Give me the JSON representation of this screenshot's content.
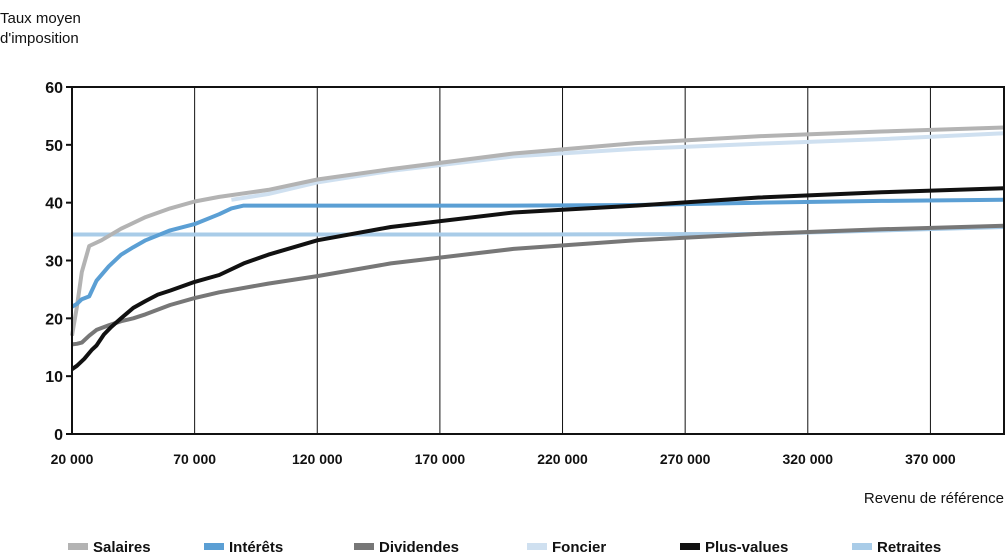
{
  "chart_data": {
    "type": "line",
    "ylabel_lines": [
      "Taux moyen",
      "d'imposition"
    ],
    "xlabel": "Revenu de référence",
    "xlim": [
      20000,
      400000
    ],
    "ylim": [
      0,
      60
    ],
    "yticks": [
      0,
      10,
      20,
      30,
      40,
      50,
      60
    ],
    "ytick_labels": [
      "0",
      "10",
      "20",
      "30",
      "40",
      "50",
      "60"
    ],
    "xticks": [
      20000,
      70000,
      120000,
      170000,
      220000,
      270000,
      320000,
      370000
    ],
    "xtick_labels": [
      "20 000",
      "70 000",
      "120 000",
      "170 000",
      "220 000",
      "270 000",
      "320 000",
      "370 000"
    ],
    "grid": "vertical",
    "legend_position": "bottom",
    "series": [
      {
        "name": "Salaires",
        "color": "#b3b3b3",
        "x": [
          20000,
          22000,
          24000,
          27000,
          32000,
          40000,
          50000,
          60000,
          70000,
          80000,
          100000,
          120000,
          150000,
          200000,
          250000,
          300000,
          350000,
          400000
        ],
        "y": [
          17,
          22,
          28,
          32.5,
          33.5,
          35.5,
          37.5,
          39,
          40.2,
          41,
          42.2,
          44,
          45.8,
          48.5,
          50.3,
          51.5,
          52.3,
          53
        ]
      },
      {
        "name": "Intérêts",
        "color": "#5b9fd4",
        "x": [
          20000,
          22000,
          24000,
          27000,
          30000,
          35000,
          40000,
          45000,
          50000,
          60000,
          70000,
          80000,
          85000,
          90000,
          95000,
          100000,
          150000,
          200000,
          250000,
          300000,
          350000,
          400000
        ],
        "y": [
          22,
          22.5,
          23.3,
          23.8,
          26.5,
          29,
          31,
          32.3,
          33.5,
          35.2,
          36.3,
          38,
          39,
          39.5,
          39.5,
          39.5,
          39.5,
          39.5,
          39.6,
          40,
          40.3,
          40.5
        ]
      },
      {
        "name": "Dividendes",
        "color": "#777777",
        "x": [
          20000,
          22000,
          24000,
          27000,
          30000,
          35000,
          40000,
          45000,
          50000,
          60000,
          70000,
          80000,
          100000,
          120000,
          150000,
          200000,
          250000,
          300000,
          350000,
          400000
        ],
        "y": [
          15.5,
          15.6,
          15.8,
          17,
          18,
          18.8,
          19.5,
          20,
          20.7,
          22.3,
          23.5,
          24.5,
          26,
          27.3,
          29.5,
          32,
          33.5,
          34.6,
          35.4,
          36
        ]
      },
      {
        "name": "Foncier",
        "color": "#cfe0f0",
        "x": [
          85000,
          100000,
          120000,
          150000,
          200000,
          250000,
          300000,
          350000,
          400000
        ],
        "y": [
          40.5,
          41.5,
          43.5,
          45.5,
          48,
          49.3,
          50.2,
          51,
          52
        ]
      },
      {
        "name": "Plus-values",
        "color": "#111111",
        "x": [
          20000,
          22000,
          25000,
          28000,
          30000,
          33000,
          36000,
          40000,
          45000,
          50000,
          55000,
          60000,
          70000,
          80000,
          90000,
          100000,
          120000,
          150000,
          200000,
          250000,
          300000,
          350000,
          400000
        ],
        "y": [
          11.2,
          11.8,
          13,
          14.5,
          15.3,
          17.2,
          18.5,
          20,
          21.8,
          23,
          24.1,
          24.8,
          26.3,
          27.5,
          29.5,
          31,
          33.5,
          35.8,
          38.3,
          39.5,
          40.9,
          41.8,
          42.5
        ]
      },
      {
        "name": "Retraites",
        "color": "#a9cce8",
        "x": [
          20000,
          100000,
          200000,
          300000,
          400000
        ],
        "y": [
          34.5,
          34.5,
          34.5,
          34.6,
          35.8
        ]
      }
    ]
  }
}
